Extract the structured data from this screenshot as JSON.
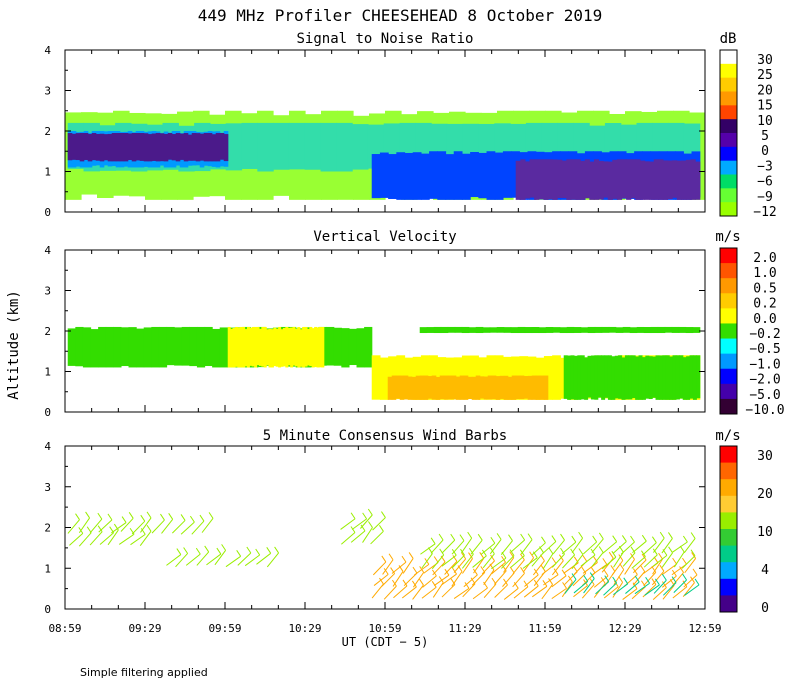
{
  "title": "449 MHz Profiler CHEESEHEAD  8 October 2019",
  "footnote": "Simple filtering applied",
  "chart_data": [
    {
      "type": "heatmap",
      "id": "snr",
      "title": "Signal to Noise Ratio",
      "ylabel": "",
      "xlabel": "",
      "ylim": [
        0,
        4
      ],
      "yticks": [
        "0",
        "1",
        "2",
        "3",
        "4"
      ],
      "xlim_hours": [
        8.983,
        12.983
      ],
      "colorbar_unit": "dB",
      "colorbar_labels": [
        "30",
        "25",
        "20",
        "15",
        "10",
        "5",
        "0",
        "−3",
        "−6",
        "−9",
        "−12"
      ],
      "colors": [
        "#ffffff",
        "#ffff00",
        "#ffcc00",
        "#ff9900",
        "#ff4400",
        "#330066",
        "#5500aa",
        "#0000ff",
        "#00aaff",
        "#00dd66",
        "#66ff33",
        "#99ff00"
      ],
      "layers": [
        {
          "color": "#99ff33",
          "x": [
            8.983,
            12.983
          ],
          "y": [
            0.3,
            2.5
          ]
        },
        {
          "color": "#33ddaa",
          "x": [
            9.0,
            12.95
          ],
          "y": [
            1.0,
            2.2
          ]
        },
        {
          "color": "#0099ff",
          "x": [
            9.0,
            10.0
          ],
          "y": [
            1.1,
            2.0
          ]
        },
        {
          "color": "#4b1a8a",
          "x": [
            9.0,
            10.0
          ],
          "y": [
            1.25,
            1.95
          ]
        },
        {
          "color": "#0044ff",
          "x": [
            10.9,
            12.95
          ],
          "y": [
            0.3,
            1.5
          ]
        },
        {
          "color": "#5a2aa0",
          "x": [
            11.8,
            12.95
          ],
          "y": [
            0.3,
            1.3
          ]
        }
      ]
    },
    {
      "type": "heatmap",
      "id": "vv",
      "title": "Vertical Velocity",
      "ylabel": "Altitude (km)",
      "xlabel": "",
      "ylim": [
        0,
        4
      ],
      "yticks": [
        "0",
        "1",
        "2",
        "3",
        "4"
      ],
      "xlim_hours": [
        8.983,
        12.983
      ],
      "colorbar_unit": "m/s",
      "colorbar_labels": [
        "2.0",
        "1.0",
        "0.5",
        "0.2",
        "0.0",
        "−0.2",
        "−0.5",
        "−1.0",
        "−2.0",
        "−5.0",
        "−10.0"
      ],
      "colors": [
        "#ff0000",
        "#ff5500",
        "#ff9900",
        "#ffcc00",
        "#ffff00",
        "#33dd00",
        "#00ffff",
        "#0099ff",
        "#0000ff",
        "#4400aa",
        "#330033"
      ],
      "layers": [
        {
          "color": "#33dd00",
          "x": [
            9.0,
            10.9
          ],
          "y": [
            1.1,
            2.1
          ]
        },
        {
          "color": "#ffff00",
          "x": [
            10.0,
            10.6
          ],
          "y": [
            1.1,
            2.1
          ]
        },
        {
          "color": "#ffff00",
          "x": [
            10.9,
            12.95
          ],
          "y": [
            0.3,
            1.4
          ]
        },
        {
          "color": "#33dd00",
          "x": [
            12.1,
            12.95
          ],
          "y": [
            0.3,
            1.4
          ]
        },
        {
          "color": "#ffbb00",
          "x": [
            11.0,
            12.0
          ],
          "y": [
            0.3,
            0.9
          ]
        },
        {
          "color": "#33dd00",
          "x": [
            11.2,
            12.95
          ],
          "y": [
            1.95,
            2.1
          ]
        }
      ]
    },
    {
      "type": "scatter",
      "id": "wind",
      "title": "5 Minute Consensus Wind Barbs",
      "ylabel": "",
      "xlabel": "UT  (CDT − 5)",
      "ylim": [
        0,
        4
      ],
      "yticks": [
        "0",
        "1",
        "2",
        "3",
        "4"
      ],
      "xticks": [
        "08:59",
        "09:29",
        "09:59",
        "10:29",
        "10:59",
        "11:29",
        "11:59",
        "12:29",
        "12:59"
      ],
      "xlim_hours": [
        8.983,
        12.983
      ],
      "colorbar_unit": "m/s",
      "colorbar_labels": [
        "30",
        "20",
        "10",
        "4",
        "0"
      ],
      "colors": [
        "#ff0000",
        "#ff6600",
        "#ffaa00",
        "#ffcc33",
        "#99ee00",
        "#33cc33",
        "#00cc88",
        "#00aaff",
        "#0000ff",
        "#440088"
      ],
      "barb_groups": [
        {
          "color": "#99ee00",
          "x": [
            9.0,
            9.9
          ],
          "y": [
            1.9,
            2.0
          ]
        },
        {
          "color": "#99ee00",
          "x": [
            9.0,
            9.5
          ],
          "y": [
            1.3,
            1.7
          ]
        },
        {
          "color": "#99ee00",
          "x": [
            9.6,
            10.3
          ],
          "y": [
            1.1,
            1.2
          ]
        },
        {
          "color": "#99ee00",
          "x": [
            10.7,
            10.95
          ],
          "y": [
            1.4,
            2.1
          ]
        },
        {
          "color": "#ffaa00",
          "x": [
            10.9,
            12.9
          ],
          "y": [
            0.1,
            1.0
          ]
        },
        {
          "color": "#99ee00",
          "x": [
            11.2,
            12.9
          ],
          "y": [
            0.8,
            1.5
          ]
        },
        {
          "color": "#00cc88",
          "x": [
            12.1,
            12.9
          ],
          "y": [
            0.1,
            0.5
          ]
        }
      ]
    }
  ]
}
